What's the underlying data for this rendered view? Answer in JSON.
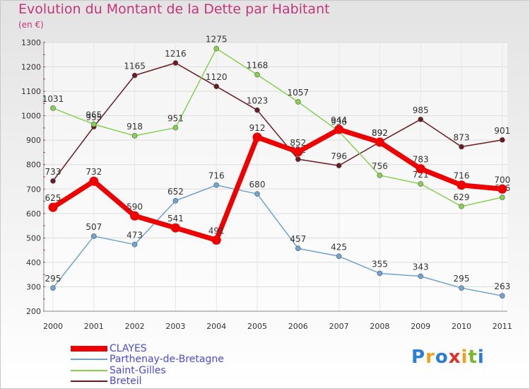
{
  "header": {
    "title": "Evolution du Montant de la Dette par Habitant",
    "unit": "(en €)"
  },
  "chart_data": {
    "type": "line",
    "title": "Evolution du Montant de la Dette par Habitant",
    "ylabel": "(en €)",
    "xlabel": "",
    "x": [
      "2000",
      "2001",
      "2002",
      "2003",
      "2004",
      "2005",
      "2006",
      "2007",
      "2008",
      "2009",
      "2010",
      "2011"
    ],
    "yticks": [
      200,
      300,
      400,
      500,
      600,
      700,
      800,
      900,
      1000,
      1100,
      1200,
      1300
    ],
    "ylim": [
      200,
      1300
    ],
    "grid": true,
    "series": [
      {
        "name": "Breteil",
        "color": "#6b1a22",
        "values": [
          733,
          955,
          1165,
          1216,
          1120,
          1023,
          822,
          796,
          892,
          985,
          873,
          901
        ]
      },
      {
        "name": "Saint-Gilles",
        "color": "#86d14d",
        "values": [
          1031,
          965,
          918,
          951,
          1275,
          1168,
          1057,
          936,
          756,
          721,
          629,
          666
        ]
      },
      {
        "name": "Parthenay-de-Bretagne",
        "color": "#6fa3d3",
        "values": [
          295,
          507,
          473,
          652,
          716,
          680,
          457,
          425,
          355,
          343,
          295,
          263
        ]
      },
      {
        "name": "CLAYES",
        "color": "#ee0000",
        "values": [
          625,
          732,
          590,
          541,
          491,
          912,
          852,
          944,
          892,
          783,
          716,
          700
        ]
      }
    ],
    "labels": [
      {
        "series": "Breteil",
        "values": [
          "733",
          "955",
          "1165",
          "1216",
          "1120",
          "1023",
          "822",
          "796",
          "892",
          "985",
          "873",
          "901"
        ]
      },
      {
        "series": "Saint-Gilles",
        "values": [
          "1031",
          "965",
          "918",
          "951",
          "1275",
          "1168",
          "1057",
          "936",
          "756",
          "721",
          "629",
          "666"
        ]
      },
      {
        "series": "Parthenay-de-Bretagne",
        "values": [
          "295",
          "507",
          "473",
          "652",
          "716",
          "680",
          "457",
          "425",
          "355",
          "343",
          "295",
          "263"
        ]
      },
      {
        "series": "CLAYES",
        "values": [
          "625",
          "732",
          "590",
          "541",
          "491",
          "912",
          "852",
          "944",
          "892",
          "783",
          "716",
          "700"
        ]
      }
    ],
    "legend": [
      "CLAYES",
      "Parthenay-de-Bretagne",
      "Saint-Gilles",
      "Breteil"
    ],
    "legend_position": "bottom-left"
  },
  "legend": {
    "items": [
      {
        "label": "CLAYES",
        "color": "#ee0000"
      },
      {
        "label": "Parthenay-de-Bretagne",
        "color": "#6fa3d3"
      },
      {
        "label": "Saint-Gilles",
        "color": "#86d14d"
      },
      {
        "label": "Breteil",
        "color": "#6b1a22"
      }
    ]
  },
  "logo": {
    "letters": [
      "P",
      "r",
      "o",
      "x",
      "i",
      "t",
      "i"
    ],
    "colors": [
      "#2a7fd4",
      "#f0a020",
      "#2a7fd4",
      "#e0302a",
      "#f0a020",
      "#79b82c",
      "#2a7fd4"
    ]
  }
}
